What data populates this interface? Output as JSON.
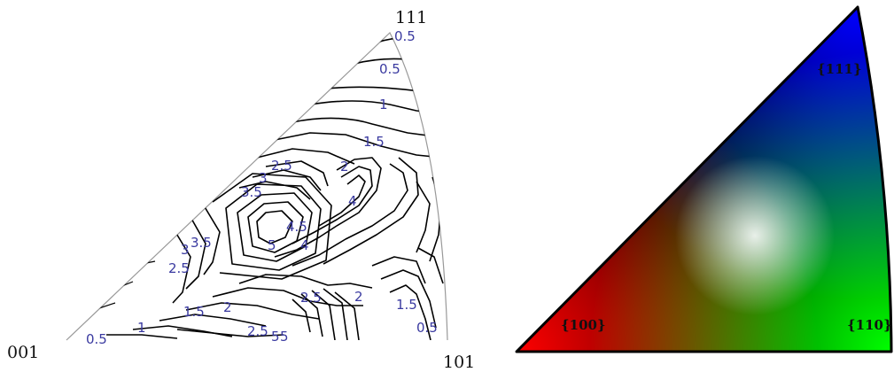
{
  "left_figure": {
    "corner_labels": {
      "top": "111",
      "bottom_left": "001",
      "bottom_right": "101"
    },
    "contour_labels": [
      "0.5",
      "0.5",
      "1",
      "1.5",
      "2.5",
      "2",
      "3",
      "3.5",
      "4",
      "4.5",
      "5",
      "4",
      "3.5",
      "3",
      "2.5",
      "1.5",
      "2",
      "1",
      "0.5",
      "2.5",
      "2",
      "2.5",
      "5",
      "5",
      "1.5",
      "0.5"
    ]
  },
  "right_figure": {
    "labels": {
      "top": "{111}",
      "bottom_left": "{100}",
      "bottom_right": "{110}"
    },
    "colors": {
      "100": "#ff0000",
      "110": "#00ff00",
      "111": "#0000ff"
    }
  }
}
